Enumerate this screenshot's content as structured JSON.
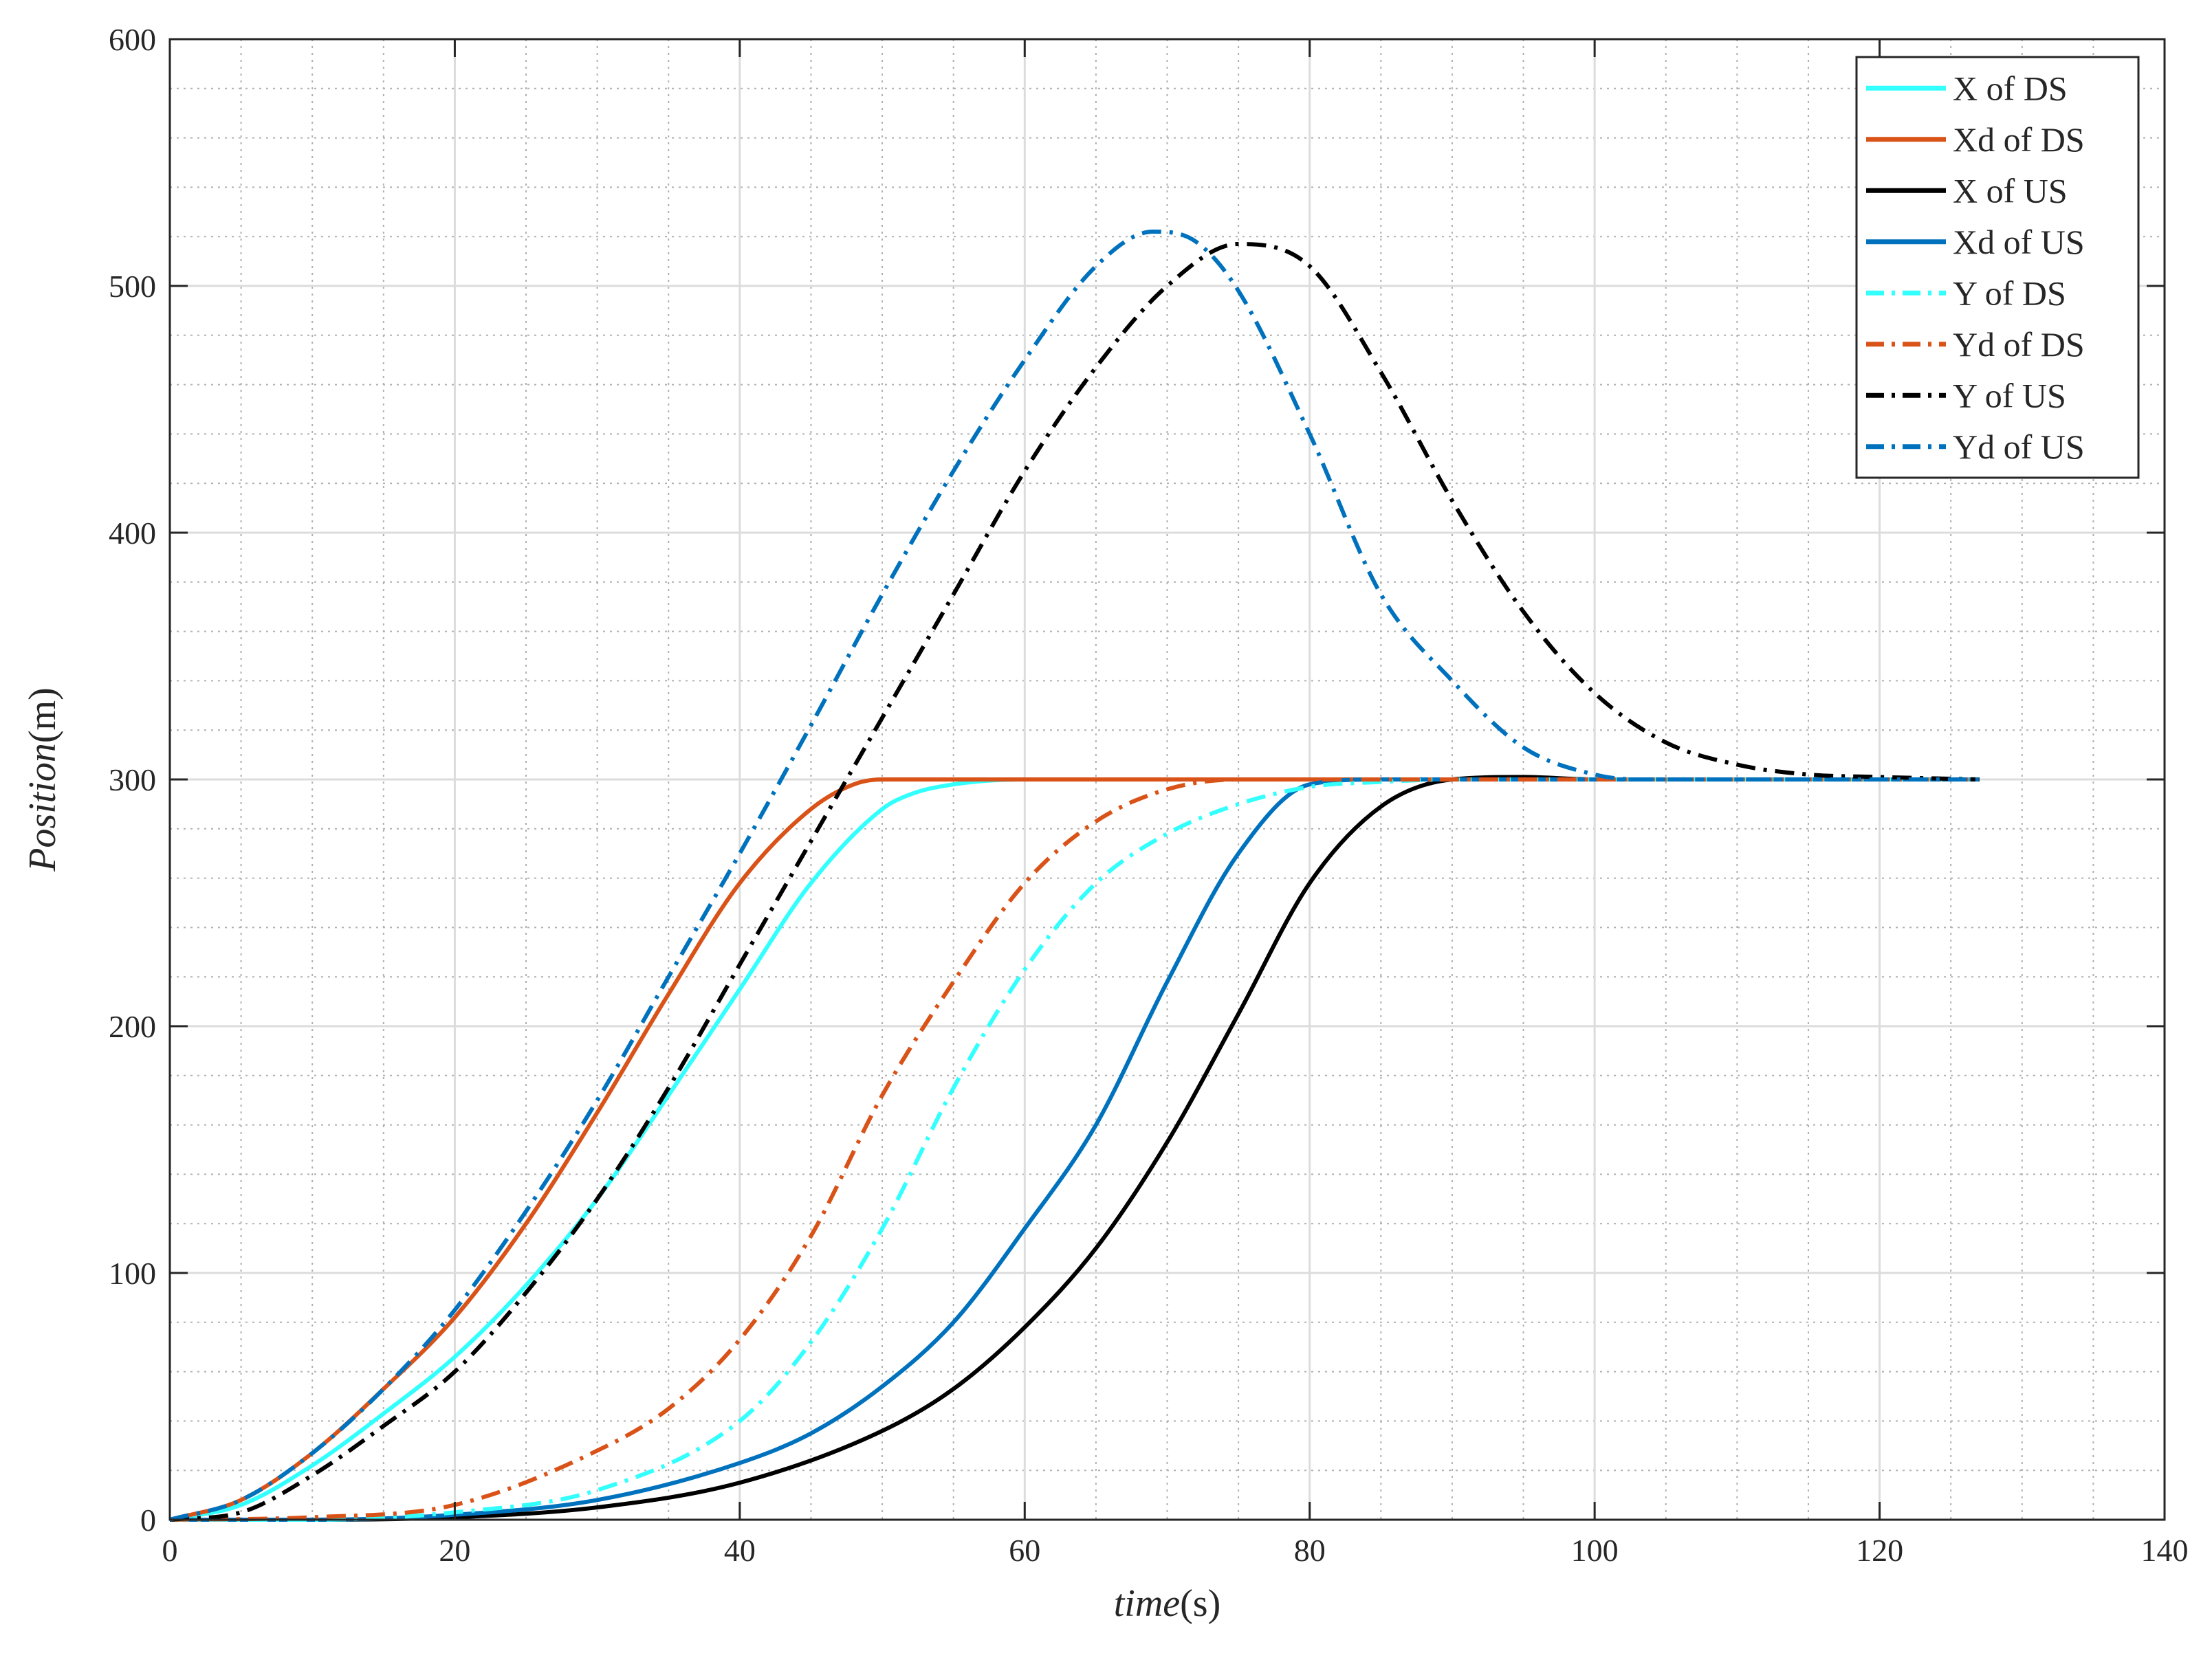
{
  "chart_data": {
    "type": "line",
    "xlabel_var": "time",
    "xlabel_unit": "(s)",
    "ylabel_var": "Position",
    "ylabel_unit": "(m)",
    "xlim": [
      0,
      140
    ],
    "ylim": [
      0,
      600
    ],
    "xticks": [
      0,
      20,
      40,
      60,
      80,
      100,
      120,
      140
    ],
    "yticks": [
      0,
      100,
      200,
      300,
      400,
      500,
      600
    ],
    "grid": true,
    "minor_grid": true,
    "legend_position": "top-right",
    "series": [
      {
        "name": "X of DS",
        "color": "#33ffff",
        "dash": "solid",
        "x": [
          0,
          5,
          10,
          15,
          20,
          25,
          30,
          35,
          40,
          45,
          50,
          52,
          55,
          60,
          70,
          80,
          100,
          127
        ],
        "y": [
          0,
          6,
          22,
          43,
          66,
          95,
          130,
          172,
          215,
          258,
          288,
          294,
          298,
          300,
          300,
          300,
          300,
          300
        ]
      },
      {
        "name": "Xd of DS",
        "color": "#d95319",
        "dash": "solid",
        "x": [
          0,
          5,
          10,
          15,
          20,
          25,
          30,
          35,
          40,
          45,
          48,
          50,
          55,
          60,
          80,
          100,
          127
        ],
        "y": [
          0,
          8,
          27,
          53,
          82,
          120,
          165,
          213,
          258,
          288,
          298,
          300,
          300,
          300,
          300,
          300,
          300
        ]
      },
      {
        "name": "X of US",
        "color": "#000000",
        "dash": "solid",
        "x": [
          0,
          10,
          20,
          30,
          40,
          50,
          55,
          60,
          65,
          70,
          75,
          80,
          85,
          90,
          95,
          100,
          127
        ],
        "y": [
          0,
          0,
          1,
          5,
          15,
          36,
          53,
          78,
          110,
          153,
          205,
          258,
          289,
          300,
          301,
          300,
          300
        ]
      },
      {
        "name": "Xd of US",
        "color": "#0072bd",
        "dash": "solid",
        "x": [
          0,
          10,
          20,
          30,
          40,
          45,
          50,
          55,
          60,
          65,
          70,
          75,
          80,
          85,
          90,
          100,
          127
        ],
        "y": [
          0,
          0,
          2,
          8,
          23,
          35,
          54,
          80,
          118,
          160,
          218,
          270,
          298,
          300,
          300,
          300,
          300
        ]
      },
      {
        "name": "Y of DS",
        "color": "#33ffff",
        "dash": "dashdot",
        "x": [
          0,
          10,
          20,
          30,
          40,
          45,
          50,
          55,
          60,
          65,
          70,
          75,
          80,
          85,
          90,
          100,
          127
        ],
        "y": [
          0,
          0,
          3,
          12,
          40,
          72,
          118,
          175,
          223,
          258,
          278,
          290,
          297,
          299,
          300,
          300,
          300
        ]
      },
      {
        "name": "Yd of DS",
        "color": "#d95319",
        "dash": "dashdot",
        "x": [
          0,
          10,
          20,
          30,
          35,
          40,
          45,
          50,
          55,
          60,
          65,
          70,
          75,
          80,
          90,
          127
        ],
        "y": [
          0,
          1,
          6,
          28,
          45,
          73,
          115,
          172,
          218,
          258,
          283,
          296,
          300,
          300,
          300,
          300
        ]
      },
      {
        "name": "Y of US",
        "color": "#000000",
        "dash": "dashdot",
        "x": [
          0,
          5,
          10,
          15,
          20,
          25,
          30,
          35,
          40,
          45,
          50,
          55,
          60,
          65,
          70,
          75,
          80,
          85,
          90,
          95,
          100,
          105,
          110,
          115,
          120,
          127
        ],
        "y": [
          0,
          3,
          18,
          38,
          60,
          92,
          130,
          175,
          225,
          275,
          325,
          375,
          425,
          467,
          500,
          517,
          508,
          465,
          413,
          368,
          335,
          315,
          306,
          302,
          301,
          300
        ]
      },
      {
        "name": "Yd of US",
        "color": "#0072bd",
        "dash": "dashdot",
        "x": [
          0,
          5,
          10,
          15,
          20,
          25,
          30,
          35,
          40,
          45,
          50,
          55,
          60,
          65,
          69,
          72,
          75,
          80,
          85,
          90,
          95,
          100,
          103,
          110,
          127
        ],
        "y": [
          0,
          8,
          27,
          53,
          85,
          125,
          170,
          220,
          270,
          322,
          375,
          425,
          470,
          508,
          522,
          518,
          498,
          440,
          375,
          340,
          313,
          302,
          300,
          300,
          300
        ]
      }
    ]
  }
}
